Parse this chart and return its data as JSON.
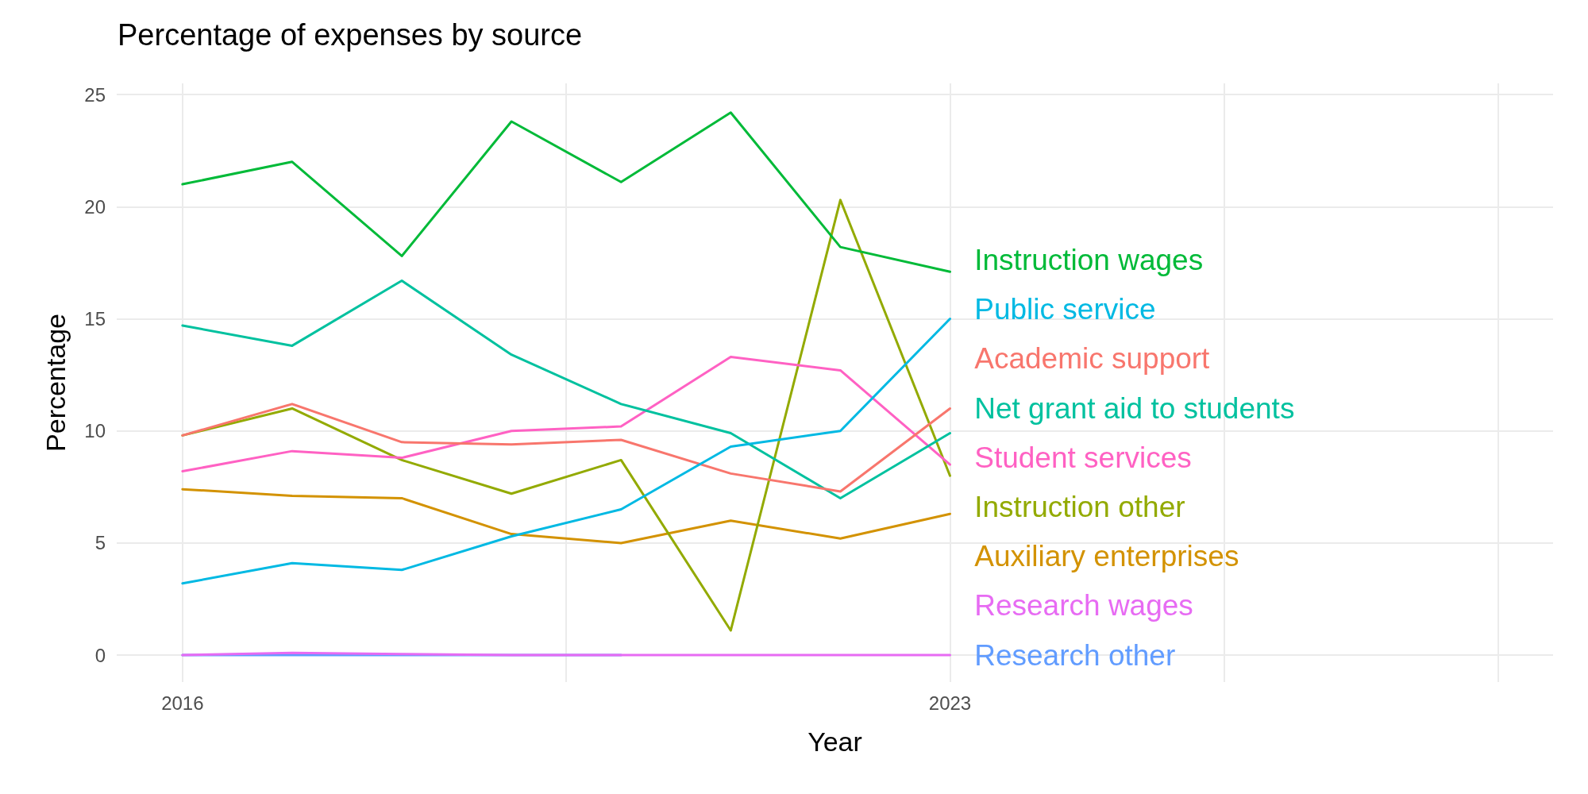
{
  "chart_data": {
    "type": "line",
    "title": "Percentage of expenses by source",
    "xlabel": "Year",
    "ylabel": "Percentage",
    "x": [
      2016,
      2017,
      2018,
      2019,
      2020,
      2021,
      2022,
      2023
    ],
    "xlim": [
      2015.4,
      2028.5
    ],
    "xticks": [
      2016,
      {
        "value": 2019.5,
        "label": null
      },
      2023,
      {
        "value": 2025.5,
        "label": null
      },
      {
        "value": 2028,
        "label": null
      }
    ],
    "ylim": [
      -1.2,
      25.5
    ],
    "yticks": [
      0,
      5,
      10,
      15,
      20,
      25
    ],
    "grid": true,
    "legend": false,
    "marker": "none",
    "line_style": "solid",
    "series": [
      {
        "name": "Instruction wages",
        "color": "#00ba38",
        "values": [
          21.0,
          22.0,
          17.8,
          23.8,
          21.1,
          24.2,
          18.2,
          17.1
        ]
      },
      {
        "name": "Public service",
        "color": "#00b9e3",
        "values": [
          3.2,
          4.1,
          3.8,
          5.3,
          6.5,
          9.3,
          10.0,
          15.0
        ]
      },
      {
        "name": "Academic support",
        "color": "#f8766d",
        "values": [
          9.8,
          11.2,
          9.5,
          9.4,
          9.6,
          8.1,
          7.3,
          11.0
        ]
      },
      {
        "name": "Net grant aid to students",
        "color": "#00c19f",
        "values": [
          14.7,
          13.8,
          16.7,
          13.4,
          11.2,
          9.9,
          7.0,
          9.9
        ]
      },
      {
        "name": "Student services",
        "color": "#ff61c3",
        "values": [
          8.2,
          9.1,
          8.8,
          10.0,
          10.2,
          13.3,
          12.7,
          8.5
        ]
      },
      {
        "name": "Instruction other",
        "color": "#93aa00",
        "values": [
          9.8,
          11.0,
          8.7,
          7.2,
          8.7,
          1.1,
          20.3,
          8.0
        ]
      },
      {
        "name": "Auxiliary enterprises",
        "color": "#d39200",
        "values": [
          7.4,
          7.1,
          7.0,
          5.4,
          5.0,
          6.0,
          5.2,
          6.3
        ]
      },
      {
        "name": "Research wages",
        "color": "#e76bf3",
        "values": [
          0,
          0.1,
          0.05,
          0,
          0,
          0,
          0,
          0
        ]
      },
      {
        "name": "Research other",
        "color": "#619cff",
        "values": [
          0,
          0,
          0,
          0,
          0,
          null,
          null,
          null
        ]
      }
    ]
  }
}
